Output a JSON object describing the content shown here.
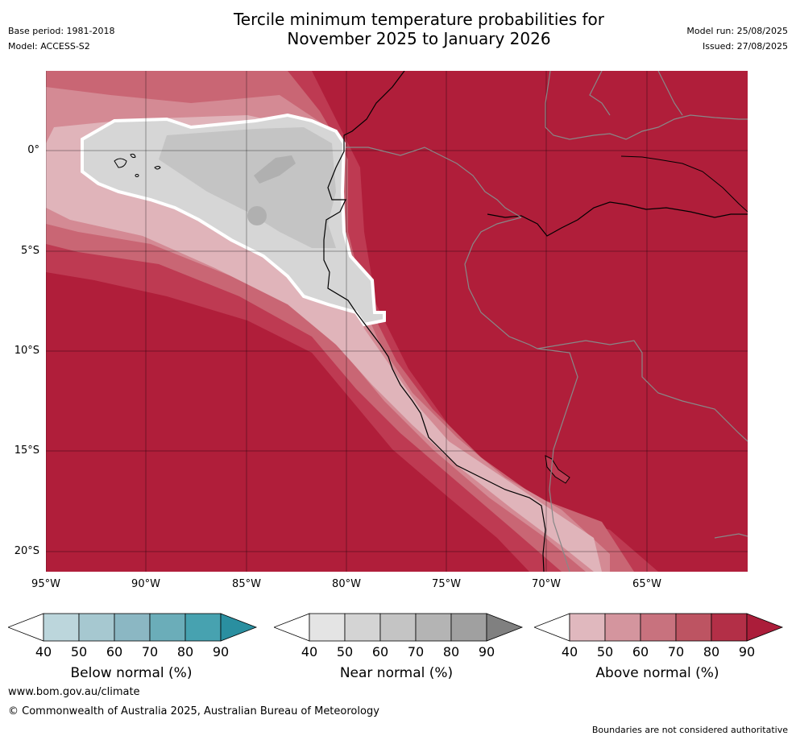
{
  "title_line1": "Tercile minimum temperature probabilities for",
  "title_line2": "November 2025 to January 2026",
  "base_period": "Base period: 1981-2018",
  "model": "Model: ACCESS-S2",
  "model_run": "Model run: 25/08/2025",
  "issued": "Issued: 27/08/2025",
  "lat_labels": [
    "0°",
    "5°S",
    "10°S",
    "15°S",
    "20°S"
  ],
  "lon_labels": [
    "95°W",
    "90°W",
    "85°W",
    "80°W",
    "75°W",
    "70°W",
    "65°W"
  ],
  "colorbars": [
    {
      "title": "Below normal (%)",
      "ticks": [
        "40",
        "50",
        "60",
        "70",
        "80",
        "90"
      ],
      "colors": [
        "#ffffff",
        "#bcd6dc",
        "#a6c8d0",
        "#8bb7c3",
        "#6badb9",
        "#47a2b0",
        "#2a8fa0"
      ]
    },
    {
      "title": "Near normal (%)",
      "ticks": [
        "40",
        "50",
        "60",
        "70",
        "80",
        "90"
      ],
      "colors": [
        "#ffffff",
        "#e4e4e4",
        "#d4d4d4",
        "#c4c4c4",
        "#b4b4b4",
        "#a0a0a0",
        "#808080"
      ]
    },
    {
      "title": "Above normal (%)",
      "ticks": [
        "40",
        "50",
        "60",
        "70",
        "80",
        "90"
      ],
      "colors": [
        "#ffffff",
        "#e0b8be",
        "#d4959e",
        "#c8727e",
        "#bd5462",
        "#b32f47",
        "#ab1d3a"
      ]
    }
  ],
  "website": "www.bom.gov.au/climate",
  "copyright": "© Commonwealth of Australia 2025, Australian Bureau of Meteorology",
  "disclaimer": "Boundaries are not considered authoritative",
  "map_colors": {
    "above_90": "#b01e3a",
    "above_80": "#be3a52",
    "above_70": "#c96674",
    "above_60": "#d48a94",
    "above_50": "#e0b4ba",
    "near_50": "#d6d6d6",
    "near_60": "#c4c4c4",
    "near_70": "#b0b0b0",
    "white": "#ffffff"
  }
}
